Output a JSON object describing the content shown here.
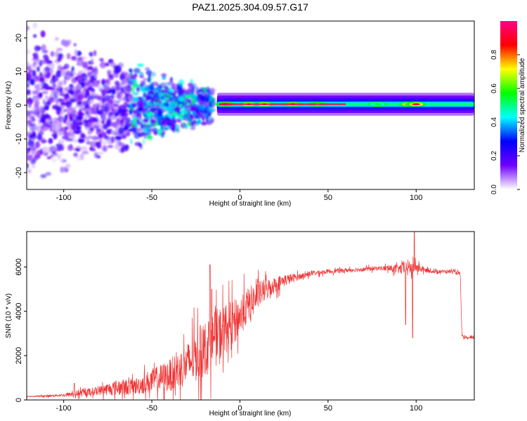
{
  "title": "PAZ1.2025.304.09.57.G17",
  "colors": {
    "snr_line": "#ee3333",
    "frame": "#000000",
    "background": "#ffffff"
  },
  "chart_data": [
    {
      "type": "heatmap",
      "xlabel": "Height of straight line (km)",
      "ylabel": "Frequency (Hz)",
      "xlim": [
        -121,
        133
      ],
      "ylim": [
        -25,
        25
      ],
      "x_ticks": [
        -100,
        -50,
        0,
        50,
        100
      ],
      "x_tick_labels": [
        "-100",
        "-50",
        "0",
        "50",
        "100"
      ],
      "y_ticks": [
        -20,
        -10,
        0,
        10,
        20
      ],
      "y_tick_labels": [
        "-20",
        "-10",
        "0",
        "10",
        "20"
      ],
      "colorbar": {
        "label": "Normalized spectral amplitude",
        "range": [
          0,
          1
        ],
        "ticks": [
          0.0,
          0.2,
          0.4,
          0.6,
          0.8
        ],
        "tick_labels": [
          "0.0",
          "0.2",
          "0.4",
          "0.6",
          "0.8"
        ],
        "colormap": [
          "#ffffff",
          "#7000ff",
          "#0000ff",
          "#00ffff",
          "#00ff00",
          "#ffff00",
          "#ff0000",
          "#ff0088"
        ]
      },
      "ridge": {
        "x_start": -13,
        "x_end": 133,
        "frequency": 0.3,
        "peaks": [
          {
            "x": -8,
            "amp": 1.0
          },
          {
            "x": 5,
            "amp": 0.85
          },
          {
            "x": 14,
            "amp": 0.9
          },
          {
            "x": 30,
            "amp": 0.95
          },
          {
            "x": 44,
            "amp": 0.7
          },
          {
            "x": 78,
            "amp": 0.55
          },
          {
            "x": 96,
            "amp": 0.85
          },
          {
            "x": 100,
            "amp": 0.9
          }
        ]
      },
      "scatter_region": {
        "x_start": -121,
        "x_end": -15,
        "spread_start_hz": 25,
        "spread_end_hz": 5
      }
    },
    {
      "type": "line",
      "xlabel": "Height of straight line (km)",
      "ylabel": "SNR (10 * v/v)",
      "xlim": [
        -121,
        133
      ],
      "ylim": [
        0,
        7600
      ],
      "x_ticks": [
        -100,
        -50,
        0,
        50,
        100
      ],
      "x_tick_labels": [
        "-100",
        "-50",
        "0",
        "50",
        "100"
      ],
      "y_ticks": [
        0,
        2000,
        4000,
        6000
      ],
      "y_tick_labels": [
        "0",
        "2000",
        "4000",
        "6000"
      ],
      "series": [
        {
          "name": "SNR",
          "x": [
            -121,
            -110,
            -100,
            -90,
            -80,
            -70,
            -60,
            -50,
            -40,
            -30,
            -25,
            -20,
            -15,
            -10,
            -5,
            0,
            5,
            10,
            15,
            20,
            25,
            30,
            35,
            40,
            50,
            60,
            70,
            80,
            90,
            95,
            100,
            105,
            110,
            120,
            125,
            126,
            127,
            133
          ],
          "values": [
            150,
            180,
            220,
            300,
            420,
            560,
            600,
            850,
            1100,
            1600,
            2000,
            2300,
            2700,
            3100,
            3400,
            3800,
            4300,
            4700,
            5000,
            5200,
            5400,
            5500,
            5600,
            5700,
            5800,
            5850,
            5900,
            5950,
            5900,
            5950,
            6000,
            5850,
            5800,
            5800,
            5700,
            2900,
            2800,
            2800
          ],
          "noise": [
            20,
            60,
            80,
            200,
            250,
            450,
            450,
            700,
            900,
            1200,
            1500,
            1600,
            1600,
            1500,
            1300,
            1100,
            1000,
            800,
            600,
            450,
            350,
            250,
            150,
            150,
            120,
            120,
            120,
            120,
            250,
            500,
            300,
            120,
            100,
            100,
            100,
            60,
            80,
            80
          ],
          "spikes": [
            {
              "x": -94,
              "value": 750
            },
            {
              "x": -17,
              "value": 6100
            },
            {
              "x": -16,
              "value": 5000
            },
            {
              "x": 94,
              "value": 3400
            },
            {
              "x": 98,
              "value": 2800
            },
            {
              "x": 99,
              "value": 7600
            }
          ]
        }
      ]
    }
  ]
}
